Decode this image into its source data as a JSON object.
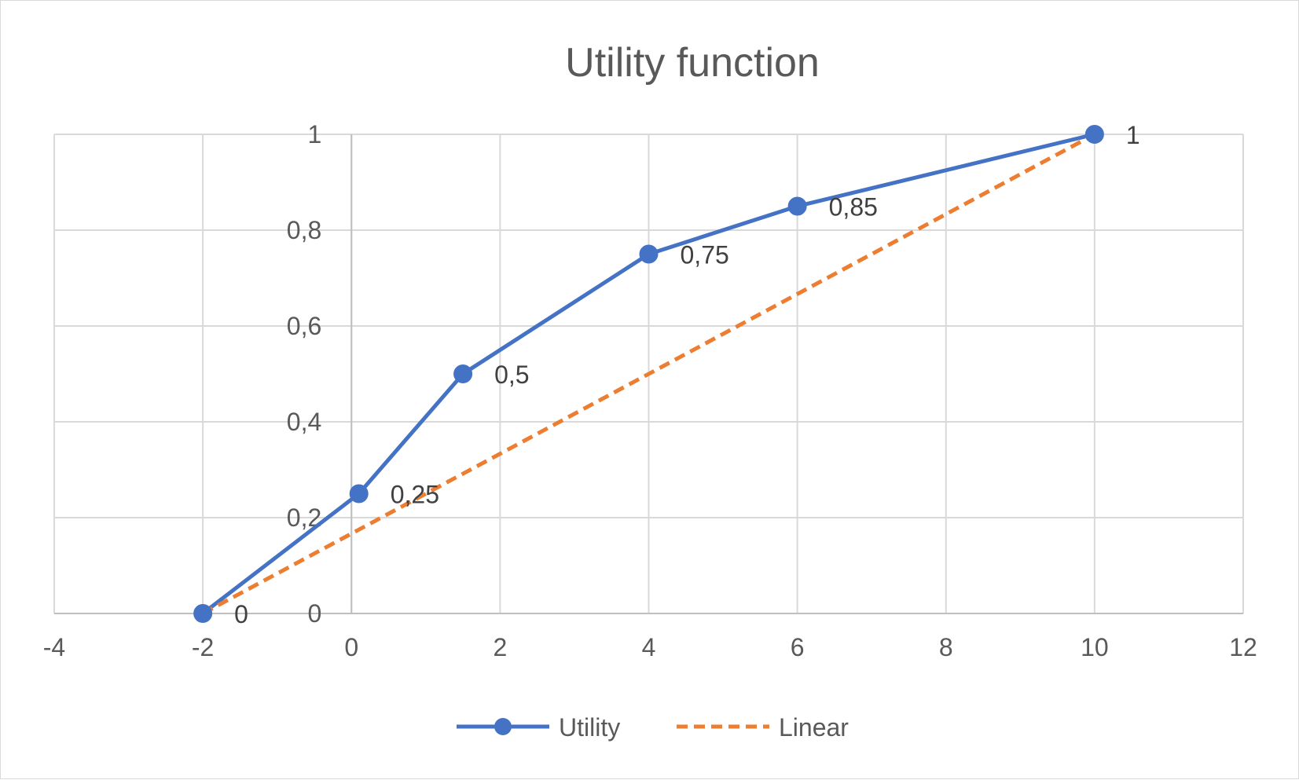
{
  "chart_data": {
    "type": "line",
    "title": "Utility function",
    "xlabel": "",
    "ylabel": "",
    "xlim": [
      -4,
      12
    ],
    "ylim": [
      0,
      1
    ],
    "x_ticks": [
      -4,
      -2,
      0,
      2,
      4,
      6,
      8,
      10,
      12
    ],
    "x_tick_labels": [
      "-4",
      "-2",
      "0",
      "2",
      "4",
      "6",
      "8",
      "10",
      "12"
    ],
    "y_ticks": [
      0,
      0.2,
      0.4,
      0.6,
      0.8,
      1
    ],
    "y_tick_labels": [
      "0",
      "0,2",
      "0,4",
      "0,6",
      "0,8",
      "1"
    ],
    "grid": true,
    "legend_position": "bottom",
    "series": [
      {
        "name": "Utility",
        "color": "#4472c4",
        "style": "solid",
        "markers": true,
        "x": [
          -2,
          0.1,
          1.5,
          4,
          6,
          10
        ],
        "y": [
          0,
          0.25,
          0.5,
          0.75,
          0.85,
          1
        ],
        "data_labels": [
          "0",
          "0,25",
          "0,5",
          "0,75",
          "0,85",
          "1"
        ]
      },
      {
        "name": "Linear",
        "color": "#ed7d31",
        "style": "dashed",
        "markers": false,
        "x": [
          -2,
          10
        ],
        "y": [
          0,
          1
        ]
      }
    ]
  }
}
